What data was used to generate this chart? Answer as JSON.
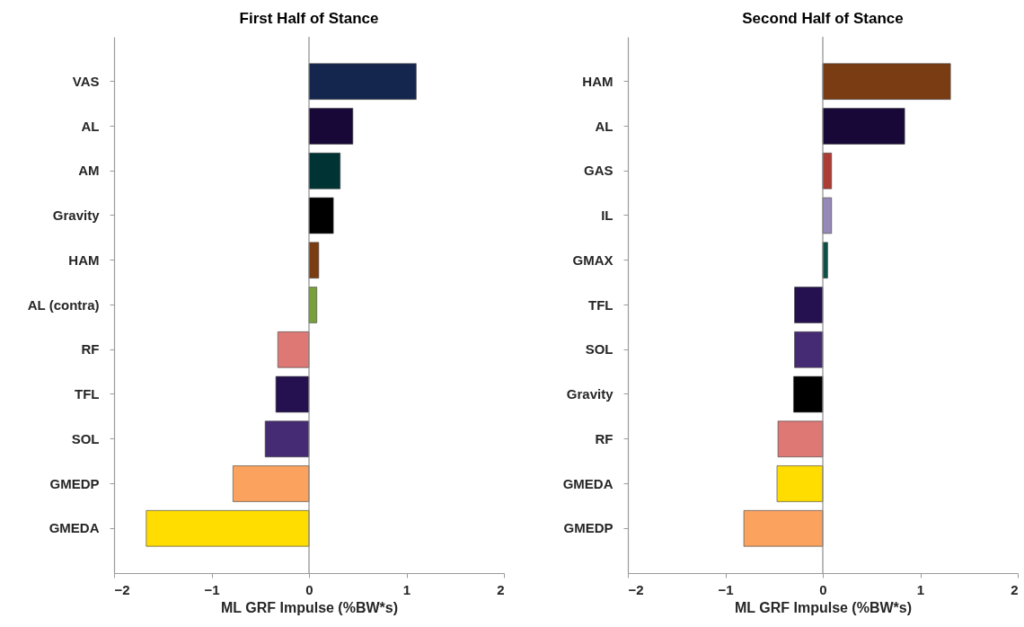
{
  "chart_data": [
    {
      "type": "bar",
      "orientation": "horizontal",
      "title": "First Half of Stance",
      "xlabel": "ML GRF Impulse (%BW*s)",
      "categories": [
        "VAS",
        "AL",
        "AM",
        "Gravity",
        "HAM",
        "AL (contra)",
        "RF",
        "TFL",
        "SOL",
        "GMEDP",
        "GMEDA"
      ],
      "values": [
        1.1,
        0.45,
        0.32,
        0.25,
        0.1,
        0.08,
        -0.32,
        -0.34,
        -0.45,
        -0.78,
        -1.67
      ],
      "colors": [
        "#14264e",
        "#170838",
        "#003333",
        "#000000",
        "#7a3c12",
        "#7aa03c",
        "#de7874",
        "#25114f",
        "#452b73",
        "#fba35e",
        "#ffdd00"
      ],
      "xlim": [
        -2,
        2
      ],
      "xticks": [
        -2,
        -1,
        0,
        1,
        2
      ],
      "ref_lines": [
        {
          "axis": "x",
          "value": 0,
          "color": "#8c8c8c"
        }
      ],
      "grid": false
    },
    {
      "type": "bar",
      "orientation": "horizontal",
      "title": "Second Half of Stance",
      "xlabel": "ML GRF Impulse (%BW*s)",
      "categories": [
        "HAM",
        "AL",
        "GAS",
        "IL",
        "GMAX",
        "TFL",
        "SOL",
        "Gravity",
        "RF",
        "GMEDA",
        "GMEDP"
      ],
      "values": [
        1.31,
        0.84,
        0.09,
        0.09,
        0.05,
        -0.29,
        -0.29,
        -0.3,
        -0.46,
        -0.47,
        -0.81
      ],
      "colors": [
        "#7a3c12",
        "#170838",
        "#ad3c35",
        "#9688b8",
        "#0d5048",
        "#25114f",
        "#452b73",
        "#000000",
        "#de7874",
        "#ffdd00",
        "#fba35e"
      ],
      "xlim": [
        -2,
        2
      ],
      "xticks": [
        -2,
        -1,
        0,
        1,
        2
      ],
      "ref_lines": [
        {
          "axis": "x",
          "value": 0,
          "color": "#8c8c8c"
        }
      ],
      "grid": false
    }
  ]
}
